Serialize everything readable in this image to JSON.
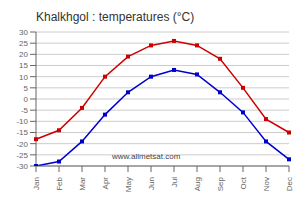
{
  "chart_data": {
    "type": "line",
    "title": "Khalkhgol : temperatures (°C)",
    "categories": [
      "Jan",
      "Feb",
      "Mar",
      "Apr",
      "May",
      "Jun",
      "Jul",
      "Aug",
      "Sep",
      "Oct",
      "Nov",
      "Dec"
    ],
    "series": [
      {
        "color": "#cc0000",
        "marker": "square",
        "values": [
          -18,
          -14,
          -4,
          10,
          19,
          24,
          26,
          24,
          18,
          5,
          -9,
          -15
        ]
      },
      {
        "color": "#0000cc",
        "marker": "square",
        "values": [
          -30,
          -28,
          -19,
          -7,
          3,
          10,
          13,
          11,
          3,
          -6,
          -19,
          -27
        ]
      }
    ],
    "ylim": [
      -30,
      30
    ],
    "yticks": [
      -30,
      -25,
      -20,
      -15,
      -10,
      -5,
      0,
      5,
      10,
      15,
      20,
      25,
      30
    ],
    "grid": true,
    "annotations": [
      "www.allmetsat.com"
    ]
  }
}
